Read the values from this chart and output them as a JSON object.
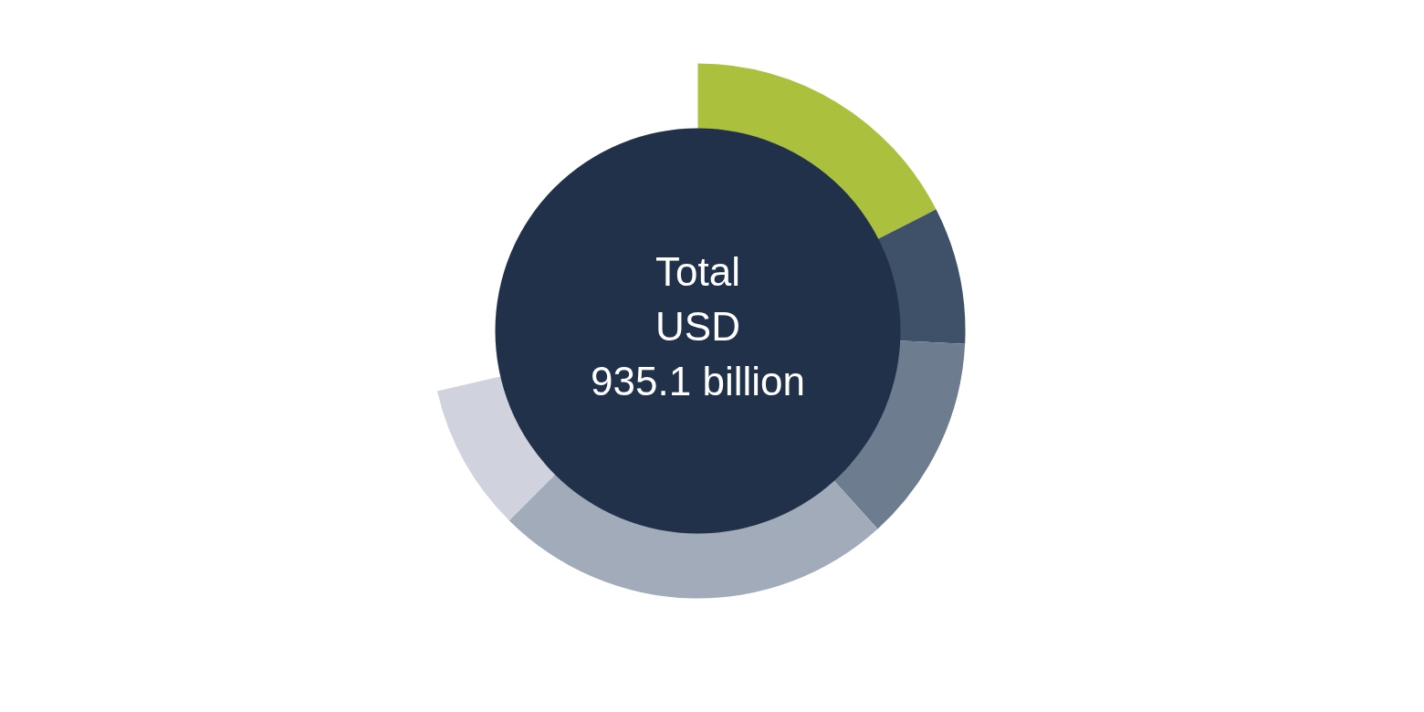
{
  "chart_data": {
    "type": "donut",
    "categories": [
      null,
      null,
      null,
      null,
      null
    ],
    "values": [
      24.5,
      11.6,
      17.5,
      33.9,
      12.5
    ],
    "colors": [
      "#abc13e",
      "#3f5069",
      "#6e7c90",
      "#a2abba",
      "#d0d3dd"
    ],
    "annotations": [
      "Total\nUSD\n935.1 billion"
    ]
  }
}
